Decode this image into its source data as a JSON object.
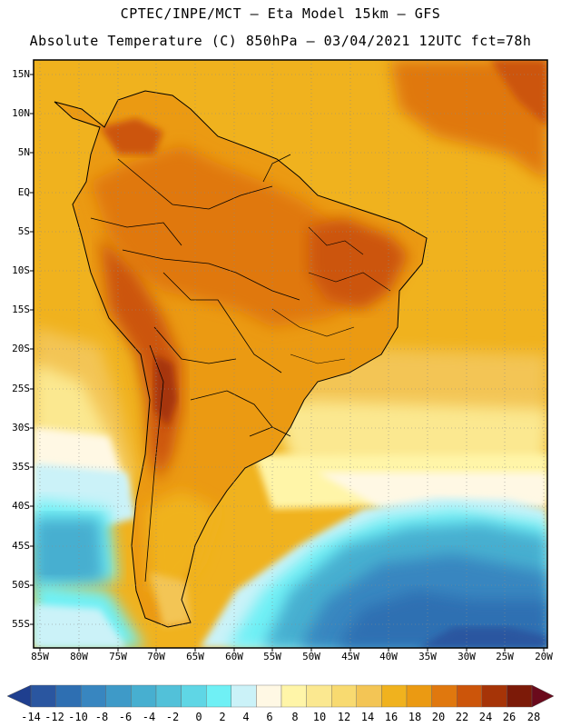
{
  "header": {
    "title_line1": "CPTEC/INPE/MCT –  Eta Model 15km – GFS",
    "title_line2": "Absolute Temperature (C) 850hPa – 03/04/2021 12UTC fct=78h"
  },
  "latitude_labels": [
    "15N",
    "10N",
    "5N",
    "EQ",
    "5S",
    "10S",
    "15S",
    "20S",
    "25S",
    "30S",
    "35S",
    "40S",
    "45S",
    "50S",
    "55S"
  ],
  "longitude_labels": [
    "85W",
    "80W",
    "75W",
    "70W",
    "65W",
    "60W",
    "55W",
    "50W",
    "45W",
    "40W",
    "35W",
    "30W",
    "25W",
    "20W"
  ],
  "colorbar": {
    "labels": [
      "-14",
      "-12",
      "-10",
      "-8",
      "-6",
      "-4",
      "-2",
      "0",
      "2",
      "4",
      "6",
      "8",
      "10",
      "12",
      "14",
      "16",
      "18",
      "20",
      "22",
      "24",
      "26",
      "28"
    ],
    "colors": [
      "#1f3f8f",
      "#2a56a0",
      "#2e6fb2",
      "#3886c0",
      "#3e9ac8",
      "#47afd0",
      "#52c1d9",
      "#5fd6e5",
      "#6ff0f5",
      "#cbf2f8",
      "#fff8e4",
      "#fff5a8",
      "#fbe890",
      "#f8da70",
      "#f3c555",
      "#f0b21e",
      "#eb9a12",
      "#e0780e",
      "#cc550a",
      "#a63407",
      "#7c1a08",
      "#6a0a1c"
    ]
  },
  "map": {
    "region": "South America",
    "field": "Absolute Temperature 850hPa",
    "colors": {
      "ocean_warm": "#f0b21e",
      "ocean_cool": "#f3c555",
      "land_hot": "#e0780e",
      "land_very_hot": "#cc550a",
      "cold_pool": "#3e9ac8",
      "cold_core": "#2a56a0",
      "grid": "#8a8a8a",
      "border": "#000000"
    }
  }
}
